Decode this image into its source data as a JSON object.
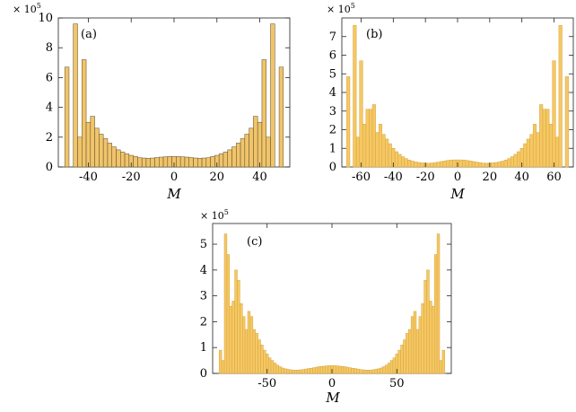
{
  "style": {
    "bar_fill": "#f6c862",
    "bar_fill_a": "#f0c46a",
    "bar_stroke": "#d4a443",
    "bar_stroke_a": "#5a4a2a"
  },
  "chart_data": [
    {
      "type": "bar",
      "panel_label": "(a)",
      "xlabel": "M",
      "scale": {
        "base": "× 10",
        "exp": "5"
      },
      "xlim": [
        -54,
        54
      ],
      "ylim": [
        0,
        10
      ],
      "xticks": [
        -40,
        -20,
        0,
        20,
        40
      ],
      "yticks": [
        0,
        2,
        4,
        6,
        8,
        10
      ],
      "bin_width": 2,
      "x": [
        -50,
        -48,
        -46,
        -44,
        -42,
        -40,
        -38,
        -36,
        -34,
        -32,
        -30,
        -28,
        -26,
        -24,
        -22,
        -20,
        -18,
        -16,
        -14,
        -12,
        -10,
        -8,
        -6,
        -4,
        -2,
        0,
        2,
        4,
        6,
        8,
        10,
        12,
        14,
        16,
        18,
        20,
        22,
        24,
        26,
        28,
        30,
        32,
        34,
        36,
        38,
        40,
        42,
        44,
        46,
        48,
        50
      ],
      "values": [
        6.7,
        0,
        9.6,
        2.0,
        7.2,
        3.0,
        3.4,
        2.6,
        2.2,
        1.9,
        1.6,
        1.35,
        1.15,
        1.0,
        0.88,
        0.78,
        0.7,
        0.62,
        0.6,
        0.58,
        0.6,
        0.63,
        0.66,
        0.68,
        0.7,
        0.7,
        0.7,
        0.68,
        0.66,
        0.63,
        0.6,
        0.58,
        0.6,
        0.62,
        0.7,
        0.78,
        0.88,
        1.0,
        1.15,
        1.35,
        1.6,
        1.9,
        2.2,
        2.6,
        3.4,
        3.0,
        7.2,
        2.0,
        9.6,
        0,
        6.7
      ]
    },
    {
      "type": "bar",
      "panel_label": "(b)",
      "xlabel": "M",
      "scale": {
        "base": "× 10",
        "exp": "5"
      },
      "xlim": [
        -72,
        72
      ],
      "ylim": [
        0,
        8
      ],
      "xticks": [
        -60,
        -40,
        -20,
        0,
        20,
        40,
        60
      ],
      "yticks": [
        0,
        1,
        2,
        3,
        4,
        5,
        6,
        7
      ],
      "bin_width": 2,
      "x": [
        -68,
        -66,
        -64,
        -62,
        -60,
        -58,
        -56,
        -54,
        -52,
        -50,
        -48,
        -46,
        -44,
        -42,
        -40,
        -38,
        -36,
        -34,
        -32,
        -30,
        -28,
        -26,
        -24,
        -22,
        -20,
        -18,
        -16,
        -14,
        -12,
        -10,
        -8,
        -6,
        -4,
        -2,
        0,
        2,
        4,
        6,
        8,
        10,
        12,
        14,
        16,
        18,
        20,
        22,
        24,
        26,
        28,
        30,
        32,
        34,
        36,
        38,
        40,
        42,
        44,
        46,
        48,
        50,
        52,
        54,
        56,
        58,
        60,
        62,
        64,
        66,
        68
      ],
      "values": [
        4.85,
        0,
        7.6,
        1.6,
        5.7,
        2.3,
        3.1,
        3.1,
        3.35,
        1.85,
        2.3,
        1.75,
        1.5,
        1.25,
        1.0,
        0.82,
        0.68,
        0.55,
        0.45,
        0.37,
        0.31,
        0.27,
        0.24,
        0.22,
        0.2,
        0.2,
        0.21,
        0.23,
        0.26,
        0.29,
        0.32,
        0.35,
        0.37,
        0.38,
        0.38,
        0.38,
        0.37,
        0.35,
        0.32,
        0.29,
        0.26,
        0.23,
        0.21,
        0.2,
        0.2,
        0.22,
        0.24,
        0.27,
        0.31,
        0.37,
        0.45,
        0.55,
        0.68,
        0.82,
        1.0,
        1.25,
        1.5,
        1.75,
        2.3,
        1.85,
        3.35,
        3.1,
        3.1,
        2.3,
        5.7,
        1.6,
        7.6,
        0,
        4.85
      ]
    },
    {
      "type": "bar",
      "panel_label": "(c)",
      "xlabel": "M",
      "scale": {
        "base": "× 10",
        "exp": "5"
      },
      "xlim": [
        -92,
        92
      ],
      "ylim": [
        0,
        5.8
      ],
      "xticks": [
        -50,
        0,
        50
      ],
      "yticks": [
        0,
        1,
        2,
        3,
        4,
        5
      ],
      "bin_width": 2,
      "x": [
        -86,
        -84,
        -82,
        -80,
        -78,
        -76,
        -74,
        -72,
        -70,
        -68,
        -66,
        -64,
        -62,
        -60,
        -58,
        -56,
        -54,
        -52,
        -50,
        -48,
        -46,
        -44,
        -42,
        -40,
        -38,
        -36,
        -34,
        -32,
        -30,
        -28,
        -26,
        -24,
        -22,
        -20,
        -18,
        -16,
        -14,
        -12,
        -10,
        -8,
        -6,
        -4,
        -2,
        0,
        2,
        4,
        6,
        8,
        10,
        12,
        14,
        16,
        18,
        20,
        22,
        24,
        26,
        28,
        30,
        32,
        34,
        36,
        38,
        40,
        42,
        44,
        46,
        48,
        50,
        52,
        54,
        56,
        58,
        60,
        62,
        64,
        66,
        68,
        70,
        72,
        74,
        76,
        78,
        80,
        82,
        84,
        86
      ],
      "values": [
        0.9,
        0.5,
        5.4,
        4.6,
        2.6,
        2.8,
        4.0,
        3.6,
        2.7,
        2.2,
        1.7,
        2.4,
        2.2,
        1.7,
        1.55,
        1.3,
        1.1,
        0.9,
        0.75,
        0.6,
        0.5,
        0.4,
        0.32,
        0.26,
        0.21,
        0.18,
        0.16,
        0.14,
        0.13,
        0.13,
        0.13,
        0.14,
        0.15,
        0.17,
        0.19,
        0.2,
        0.22,
        0.24,
        0.26,
        0.27,
        0.28,
        0.29,
        0.3,
        0.3,
        0.3,
        0.29,
        0.28,
        0.27,
        0.26,
        0.24,
        0.22,
        0.2,
        0.19,
        0.17,
        0.15,
        0.14,
        0.13,
        0.13,
        0.13,
        0.14,
        0.16,
        0.18,
        0.21,
        0.26,
        0.32,
        0.4,
        0.5,
        0.6,
        0.75,
        0.9,
        1.1,
        1.3,
        1.55,
        1.7,
        2.2,
        2.4,
        1.7,
        2.2,
        2.7,
        3.6,
        4.0,
        2.8,
        2.6,
        4.6,
        5.4,
        0.5,
        0.9
      ]
    }
  ]
}
